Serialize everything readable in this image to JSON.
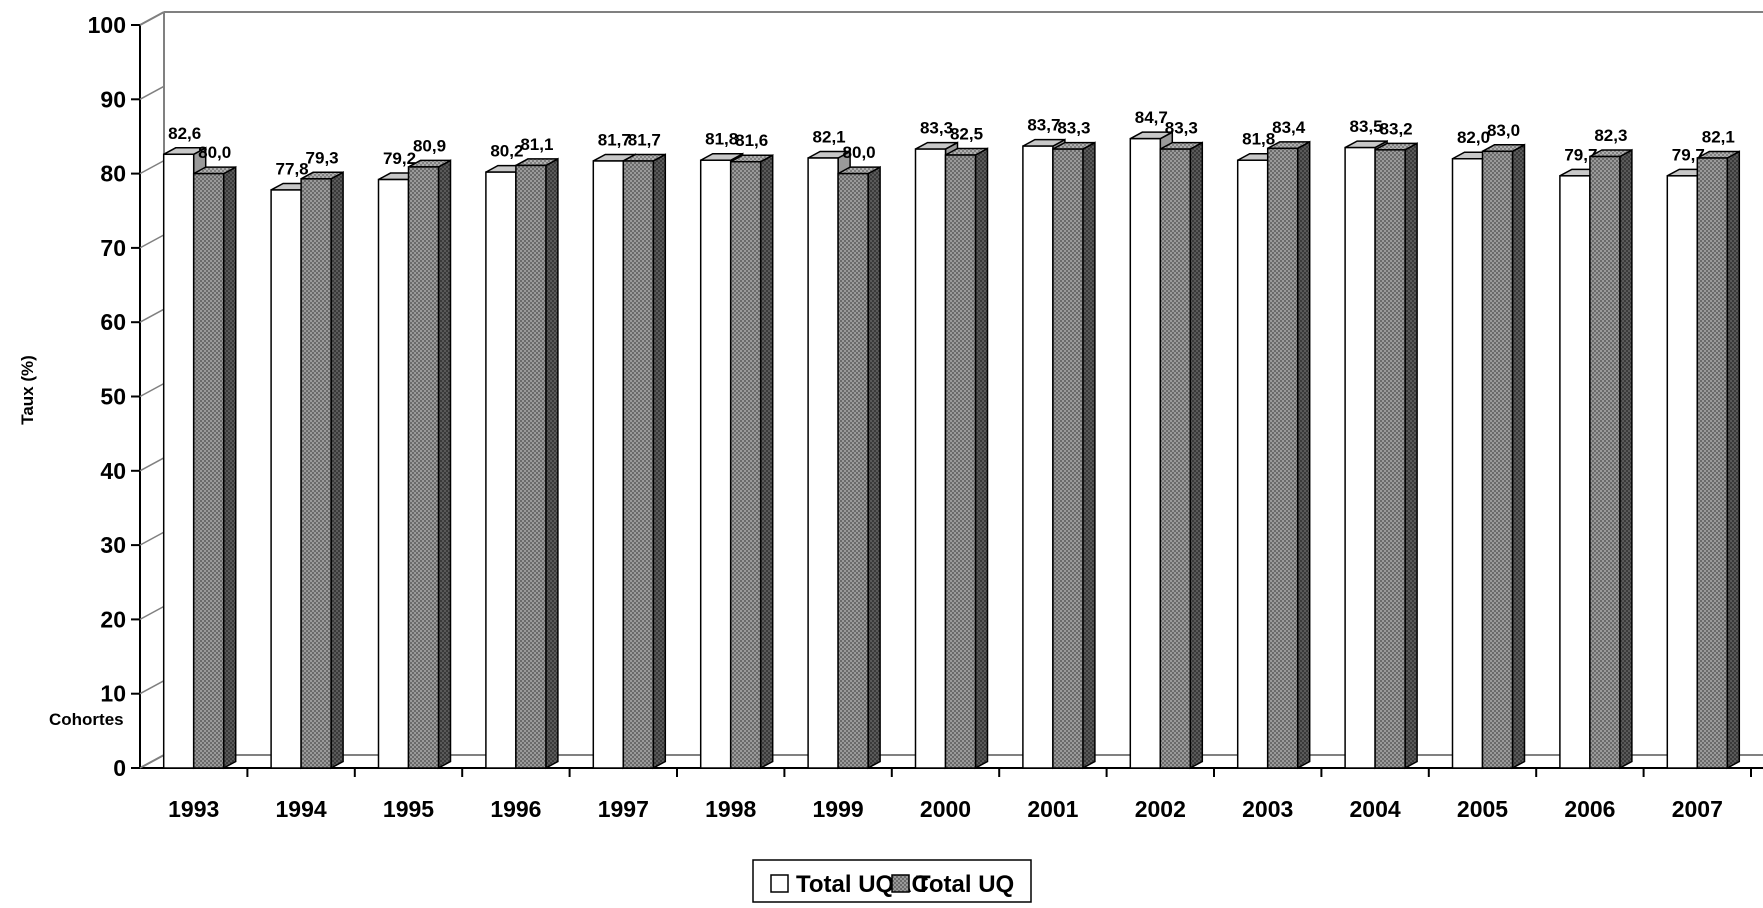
{
  "chart_data": {
    "type": "bar",
    "ylabel": "Taux (%)",
    "xlabel": "Cohortes",
    "ylim": [
      0,
      100
    ],
    "yticks": [
      0,
      10,
      20,
      30,
      40,
      50,
      60,
      70,
      80,
      90,
      100
    ],
    "categories": [
      "1993",
      "1994",
      "1995",
      "1996",
      "1997",
      "1998",
      "1999",
      "2000",
      "2001",
      "2002",
      "2003",
      "2004",
      "2005",
      "2006",
      "2007"
    ],
    "series": [
      {
        "name": "Total UQAC",
        "color": "#ffffff",
        "values": [
          82.6,
          77.8,
          79.2,
          80.2,
          81.7,
          81.8,
          82.1,
          83.3,
          83.7,
          84.7,
          81.8,
          83.5,
          82.0,
          79.7,
          79.7
        ],
        "labels": [
          "82,6",
          "77,8",
          "79,2",
          "80,2",
          "81,7",
          "81,8",
          "82,1",
          "83,3",
          "83,7",
          "84,7",
          "81,8",
          "83,5",
          "82,0",
          "79,7",
          "79,7"
        ]
      },
      {
        "name": "Total UQ",
        "color": "#8c8c8c",
        "values": [
          80.0,
          79.3,
          80.9,
          81.1,
          81.7,
          81.6,
          80.0,
          82.5,
          83.3,
          83.3,
          83.4,
          83.2,
          83.0,
          82.3,
          82.1
        ],
        "labels": [
          "80,0",
          "79,3",
          "80,9",
          "81,1",
          "81,7",
          "81,6",
          "80,0",
          "82,5",
          "83,3",
          "83,3",
          "83,4",
          "83,2",
          "83,0",
          "82,3",
          "82,1"
        ]
      }
    ],
    "grid": false,
    "legend_position": "bottom-center",
    "style": "3d-bars"
  }
}
